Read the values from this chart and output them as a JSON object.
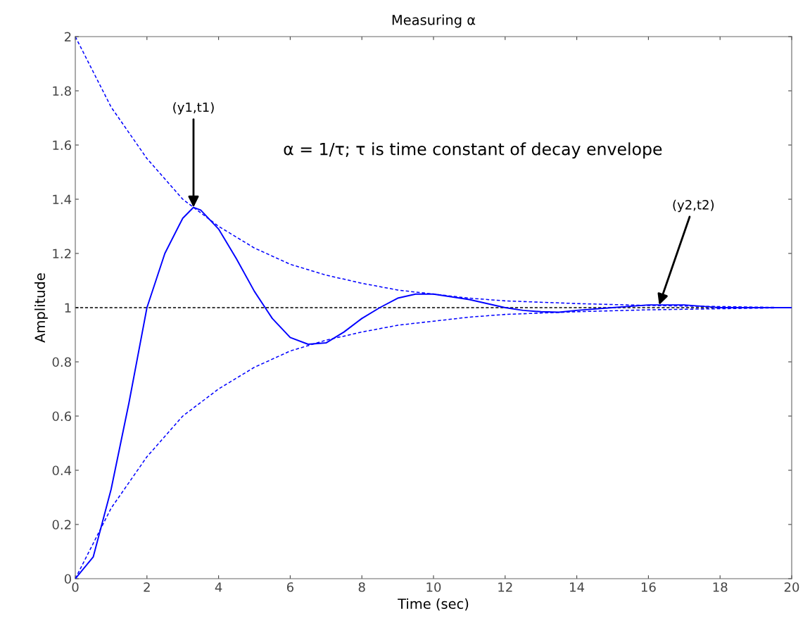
{
  "chart_data": {
    "type": "line",
    "title": "Measuring α",
    "xlabel": "Time (sec)",
    "ylabel": "Amplitude",
    "xlim": [
      0,
      20
    ],
    "ylim": [
      0,
      2
    ],
    "xticks": [
      0,
      2,
      4,
      6,
      8,
      10,
      12,
      14,
      16,
      18,
      20
    ],
    "yticks": [
      0,
      0.2,
      0.4,
      0.6,
      0.8,
      1,
      1.2,
      1.4,
      1.6,
      1.8,
      2
    ],
    "grid": false,
    "legend": false,
    "marker": "none",
    "series": [
      {
        "color": "#0000ff",
        "line_style": "solid",
        "x": [
          0,
          0.5,
          1,
          1.5,
          2,
          2.5,
          3,
          3.3,
          3.5,
          4,
          4.5,
          5,
          5.3,
          5.5,
          6,
          6.5,
          7,
          7.5,
          8,
          8.5,
          9,
          9.5,
          10,
          11,
          12,
          12.5,
          13,
          13.5,
          14,
          15,
          16,
          17,
          18,
          20
        ],
        "values": [
          0,
          0.08,
          0.33,
          0.65,
          1.0,
          1.2,
          1.33,
          1.37,
          1.36,
          1.29,
          1.18,
          1.06,
          1.0,
          0.96,
          0.89,
          0.865,
          0.87,
          0.91,
          0.96,
          1.0,
          1.035,
          1.05,
          1.05,
          1.03,
          1.0,
          0.99,
          0.985,
          0.983,
          0.99,
          1.0,
          1.01,
          1.01,
          1.0,
          1.0
        ]
      },
      {
        "color": "#0000ff",
        "line_style": "dashed",
        "x": [
          0,
          1,
          2,
          3,
          4,
          5,
          6,
          7,
          8,
          9,
          10,
          11,
          12,
          14,
          16,
          18,
          20
        ],
        "values": [
          2,
          1.74,
          1.55,
          1.4,
          1.3,
          1.22,
          1.16,
          1.12,
          1.09,
          1.065,
          1.05,
          1.035,
          1.025,
          1.015,
          1.008,
          1.004,
          1.0
        ]
      },
      {
        "color": "#0000ff",
        "line_style": "dashed",
        "x": [
          0,
          1,
          2,
          3,
          4,
          5,
          6,
          7,
          8,
          9,
          10,
          11,
          12,
          14,
          16,
          18,
          20
        ],
        "values": [
          0,
          0.26,
          0.45,
          0.6,
          0.7,
          0.78,
          0.84,
          0.88,
          0.91,
          0.935,
          0.95,
          0.965,
          0.975,
          0.985,
          0.992,
          0.996,
          1.0
        ]
      }
    ],
    "ref_lines": [
      {
        "axis": "y",
        "value": 1,
        "color": "#000000",
        "line_style": "dashed"
      }
    ],
    "annotations": [
      {
        "text": "(y1,t1)",
        "x": 3.3,
        "y": 1.37
      },
      {
        "text": "(y2,t2)",
        "x": 16.3,
        "y": 1.01
      },
      "α = 1/τ; τ is time constant of decay envelope"
    ]
  }
}
